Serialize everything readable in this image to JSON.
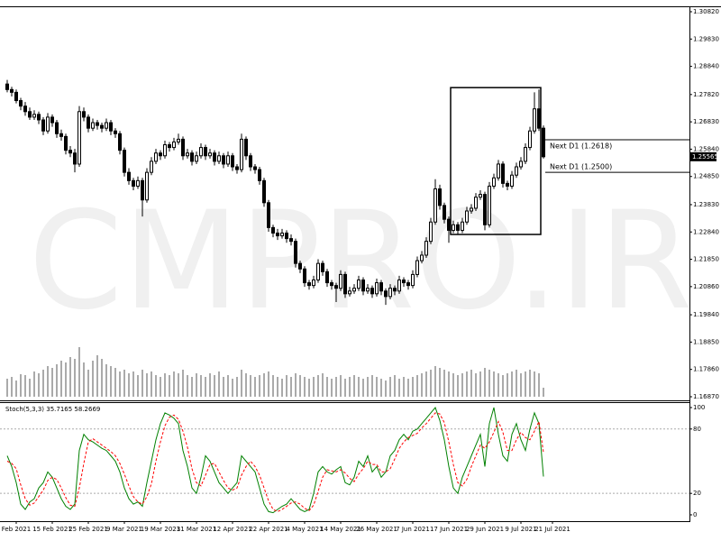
{
  "chart_data": {
    "type": "candlestick",
    "watermark": "CMPRO.IR",
    "ylim": [
      1.16772,
      1.30983
    ],
    "xlim": [
      -1.6,
      151.4
    ],
    "yticks": [
      {
        "value": 1.3082,
        "label": "1.30820"
      },
      {
        "value": 1.2983,
        "label": "1.29830"
      },
      {
        "value": 1.2884,
        "label": "1.28840"
      },
      {
        "value": 1.2782,
        "label": "1.27820"
      },
      {
        "value": 1.2683,
        "label": "1.26830"
      },
      {
        "value": 1.2584,
        "label": "1.25840"
      },
      {
        "value": 1.2485,
        "label": "1.24850"
      },
      {
        "value": 1.2383,
        "label": "1.23830"
      },
      {
        "value": 1.2284,
        "label": "1.22840"
      },
      {
        "value": 1.2185,
        "label": "1.21850"
      },
      {
        "value": 1.2086,
        "label": "1.20860"
      },
      {
        "value": 1.1984,
        "label": "1.19840"
      },
      {
        "value": 1.1885,
        "label": "1.18850"
      },
      {
        "value": 1.1786,
        "label": "1.17860"
      },
      {
        "value": 1.1687,
        "label": "1.16870"
      }
    ],
    "xticks": [
      {
        "value": 2,
        "label": "Feb 2021"
      },
      {
        "value": 10,
        "label": "15 Feb 2021"
      },
      {
        "value": 18,
        "label": "25 Feb 2021"
      },
      {
        "value": 26,
        "label": "9 Mar 2021"
      },
      {
        "value": 34,
        "label": "19 Mar 2021"
      },
      {
        "value": 42,
        "label": "31 Mar 2021"
      },
      {
        "value": 50,
        "label": "12 Apr 2021"
      },
      {
        "value": 58,
        "label": "22 Apr 2021"
      },
      {
        "value": 66,
        "label": "4 May 2021"
      },
      {
        "value": 74,
        "label": "14 May 2021"
      },
      {
        "value": 82,
        "label": "26 May 2021"
      },
      {
        "value": 90,
        "label": "7 Jun 2021"
      },
      {
        "value": 98,
        "label": "17 Jun 2021"
      },
      {
        "value": 106,
        "label": "29 Jun 2021"
      },
      {
        "value": 114,
        "label": "9 Jul 2021"
      },
      {
        "value": 121,
        "label": "21 Jul 2021"
      }
    ],
    "last_price": {
      "value": 1.25565,
      "label": "1.25565"
    },
    "levels": [
      {
        "value": 1.2618,
        "label": "Next D1 (1.2618)"
      },
      {
        "value": 1.25,
        "label": "Next D1 (1.2500)"
      }
    ],
    "box": {
      "x": [
        98.4,
        118.4
      ],
      "y": [
        1.2275,
        1.2807
      ]
    },
    "ohlc": [
      [
        1.282,
        1.2835,
        1.279,
        1.28
      ],
      [
        1.28,
        1.281,
        1.2775,
        1.279
      ],
      [
        1.279,
        1.28,
        1.275,
        1.276
      ],
      [
        1.276,
        1.277,
        1.2725,
        1.274
      ],
      [
        1.274,
        1.2755,
        1.2705,
        1.272
      ],
      [
        1.272,
        1.2735,
        1.269,
        1.27
      ],
      [
        1.27,
        1.2725,
        1.269,
        1.271
      ],
      [
        1.271,
        1.272,
        1.2675,
        1.269
      ],
      [
        1.269,
        1.27,
        1.2635,
        1.265
      ],
      [
        1.265,
        1.2715,
        1.264,
        1.27
      ],
      [
        1.27,
        1.271,
        1.2665,
        1.268
      ],
      [
        1.268,
        1.269,
        1.2625,
        1.264
      ],
      [
        1.264,
        1.2655,
        1.2615,
        1.263
      ],
      [
        1.263,
        1.264,
        1.2565,
        1.258
      ],
      [
        1.258,
        1.2595,
        1.2555,
        1.257
      ],
      [
        1.257,
        1.2585,
        1.25,
        1.253
      ],
      [
        1.253,
        1.274,
        1.252,
        1.272
      ],
      [
        1.272,
        1.2735,
        1.2685,
        1.27
      ],
      [
        1.27,
        1.271,
        1.2645,
        1.266
      ],
      [
        1.266,
        1.2695,
        1.265,
        1.268
      ],
      [
        1.268,
        1.269,
        1.2655,
        1.267
      ],
      [
        1.267,
        1.268,
        1.2645,
        1.266
      ],
      [
        1.266,
        1.2695,
        1.265,
        1.268
      ],
      [
        1.268,
        1.269,
        1.2635,
        1.265
      ],
      [
        1.265,
        1.266,
        1.2625,
        1.264
      ],
      [
        1.264,
        1.265,
        1.2565,
        1.258
      ],
      [
        1.258,
        1.259,
        1.2485,
        1.25
      ],
      [
        1.25,
        1.2515,
        1.2455,
        1.247
      ],
      [
        1.247,
        1.248,
        1.2435,
        1.245
      ],
      [
        1.245,
        1.2485,
        1.244,
        1.247
      ],
      [
        1.247,
        1.248,
        1.234,
        1.24
      ],
      [
        1.24,
        1.2515,
        1.239,
        1.25
      ],
      [
        1.25,
        1.2555,
        1.249,
        1.254
      ],
      [
        1.254,
        1.2585,
        1.253,
        1.257
      ],
      [
        1.257,
        1.258,
        1.2545,
        1.256
      ],
      [
        1.256,
        1.2615,
        1.255,
        1.26
      ],
      [
        1.26,
        1.261,
        1.2575,
        1.259
      ],
      [
        1.259,
        1.2625,
        1.258,
        1.261
      ],
      [
        1.261,
        1.264,
        1.26,
        1.262
      ],
      [
        1.262,
        1.263,
        1.2545,
        1.256
      ],
      [
        1.256,
        1.2585,
        1.255,
        1.257
      ],
      [
        1.257,
        1.258,
        1.2525,
        1.254
      ],
      [
        1.254,
        1.2575,
        1.253,
        1.256
      ],
      [
        1.256,
        1.2605,
        1.255,
        1.259
      ],
      [
        1.259,
        1.26,
        1.2545,
        1.256
      ],
      [
        1.256,
        1.2585,
        1.255,
        1.257
      ],
      [
        1.257,
        1.258,
        1.2525,
        1.254
      ],
      [
        1.254,
        1.2575,
        1.253,
        1.256
      ],
      [
        1.256,
        1.257,
        1.2515,
        1.253
      ],
      [
        1.253,
        1.2575,
        1.252,
        1.256
      ],
      [
        1.256,
        1.257,
        1.2505,
        1.252
      ],
      [
        1.252,
        1.253,
        1.2495,
        1.251
      ],
      [
        1.251,
        1.264,
        1.25,
        1.262
      ],
      [
        1.262,
        1.263,
        1.2545,
        1.256
      ],
      [
        1.256,
        1.257,
        1.2505,
        1.252
      ],
      [
        1.252,
        1.253,
        1.2495,
        1.251
      ],
      [
        1.251,
        1.252,
        1.2455,
        1.247
      ],
      [
        1.247,
        1.248,
        1.2375,
        1.239
      ],
      [
        1.239,
        1.24,
        1.2285,
        1.23
      ],
      [
        1.23,
        1.231,
        1.2265,
        1.228
      ],
      [
        1.228,
        1.2295,
        1.2255,
        1.227
      ],
      [
        1.227,
        1.2295,
        1.226,
        1.228
      ],
      [
        1.228,
        1.229,
        1.2245,
        1.226
      ],
      [
        1.226,
        1.2275,
        1.2235,
        1.225
      ],
      [
        1.225,
        1.226,
        1.2155,
        1.217
      ],
      [
        1.217,
        1.218,
        1.2135,
        1.215
      ],
      [
        1.215,
        1.216,
        1.2085,
        1.21
      ],
      [
        1.21,
        1.211,
        1.2075,
        1.209
      ],
      [
        1.209,
        1.2125,
        1.208,
        1.211
      ],
      [
        1.211,
        1.2185,
        1.21,
        1.217
      ],
      [
        1.217,
        1.218,
        1.2125,
        1.214
      ],
      [
        1.214,
        1.215,
        1.2085,
        1.21
      ],
      [
        1.21,
        1.211,
        1.2075,
        1.209
      ],
      [
        1.209,
        1.21,
        1.203,
        1.208
      ],
      [
        1.208,
        1.2145,
        1.207,
        1.213
      ],
      [
        1.213,
        1.214,
        1.2045,
        1.206
      ],
      [
        1.206,
        1.2085,
        1.205,
        1.207
      ],
      [
        1.207,
        1.2095,
        1.206,
        1.208
      ],
      [
        1.208,
        1.2125,
        1.207,
        1.211
      ],
      [
        1.211,
        1.212,
        1.2055,
        1.207
      ],
      [
        1.207,
        1.2095,
        1.206,
        1.208
      ],
      [
        1.208,
        1.209,
        1.2045,
        1.206
      ],
      [
        1.206,
        1.2115,
        1.205,
        1.21
      ],
      [
        1.21,
        1.211,
        1.2055,
        1.207
      ],
      [
        1.207,
        1.208,
        1.202,
        1.205
      ],
      [
        1.205,
        1.2095,
        1.204,
        1.208
      ],
      [
        1.208,
        1.209,
        1.2055,
        1.207
      ],
      [
        1.207,
        1.2125,
        1.206,
        1.211
      ],
      [
        1.211,
        1.212,
        1.2085,
        1.21
      ],
      [
        1.21,
        1.211,
        1.2075,
        1.209
      ],
      [
        1.209,
        1.2145,
        1.208,
        1.213
      ],
      [
        1.213,
        1.2195,
        1.212,
        1.218
      ],
      [
        1.218,
        1.2215,
        1.217,
        1.22
      ],
      [
        1.22,
        1.2265,
        1.219,
        1.225
      ],
      [
        1.225,
        1.2335,
        1.224,
        1.232
      ],
      [
        1.232,
        1.2475,
        1.231,
        1.244
      ],
      [
        1.244,
        1.2455,
        1.2365,
        1.238
      ],
      [
        1.238,
        1.239,
        1.2315,
        1.233
      ],
      [
        1.233,
        1.234,
        1.2245,
        1.229
      ],
      [
        1.229,
        1.2325,
        1.228,
        1.231
      ],
      [
        1.231,
        1.232,
        1.2275,
        1.229
      ],
      [
        1.229,
        1.2335,
        1.228,
        1.232
      ],
      [
        1.232,
        1.2375,
        1.231,
        1.236
      ],
      [
        1.236,
        1.2385,
        1.235,
        1.237
      ],
      [
        1.237,
        1.2425,
        1.236,
        1.241
      ],
      [
        1.241,
        1.2435,
        1.24,
        1.242
      ],
      [
        1.242,
        1.243,
        1.229,
        1.231
      ],
      [
        1.231,
        1.2465,
        1.23,
        1.245
      ],
      [
        1.245,
        1.2495,
        1.244,
        1.248
      ],
      [
        1.248,
        1.2545,
        1.247,
        1.253
      ],
      [
        1.253,
        1.254,
        1.2445,
        1.246
      ],
      [
        1.246,
        1.247,
        1.2435,
        1.245
      ],
      [
        1.245,
        1.2505,
        1.244,
        1.249
      ],
      [
        1.249,
        1.2535,
        1.248,
        1.252
      ],
      [
        1.252,
        1.2555,
        1.251,
        1.254
      ],
      [
        1.254,
        1.2605,
        1.253,
        1.259
      ],
      [
        1.259,
        1.2665,
        1.258,
        1.265
      ],
      [
        1.265,
        1.279,
        1.264,
        1.273
      ],
      [
        1.273,
        1.28,
        1.265,
        1.266
      ],
      [
        1.266,
        1.267,
        1.255,
        1.25565
      ]
    ],
    "volume": [
      20,
      22,
      18,
      25,
      24,
      20,
      28,
      26,
      30,
      34,
      32,
      36,
      40,
      38,
      44,
      42,
      55,
      38,
      30,
      40,
      46,
      42,
      36,
      34,
      32,
      28,
      30,
      26,
      28,
      24,
      30,
      26,
      28,
      24,
      22,
      26,
      24,
      28,
      26,
      30,
      24,
      22,
      26,
      24,
      22,
      26,
      24,
      28,
      22,
      24,
      20,
      22,
      30,
      26,
      24,
      22,
      24,
      26,
      28,
      24,
      22,
      20,
      24,
      22,
      26,
      24,
      22,
      20,
      22,
      24,
      26,
      22,
      20,
      22,
      24,
      20,
      22,
      24,
      22,
      20,
      22,
      24,
      22,
      20,
      18,
      22,
      24,
      20,
      22,
      20,
      22,
      24,
      26,
      28,
      30,
      34,
      32,
      30,
      28,
      26,
      24,
      26,
      28,
      30,
      26,
      28,
      32,
      30,
      28,
      26,
      24,
      26,
      28,
      30,
      26,
      28,
      30,
      28,
      26,
      10
    ],
    "indicator": {
      "type": "line",
      "title": "Stoch(5,3,3) 35.7165 58.2669",
      "ylim": [
        -5.9,
        104.2
      ],
      "yticks": [
        100,
        80,
        20,
        0
      ],
      "levels": [
        80,
        20
      ],
      "series": [
        {
          "name": "Main",
          "color": "#008000",
          "dash": false,
          "values": [
            55,
            45,
            30,
            10,
            5,
            12,
            15,
            25,
            30,
            40,
            35,
            25,
            15,
            8,
            5,
            10,
            60,
            75,
            70,
            68,
            65,
            62,
            60,
            55,
            50,
            40,
            25,
            15,
            10,
            12,
            8,
            30,
            50,
            70,
            85,
            95,
            93,
            90,
            85,
            60,
            45,
            25,
            20,
            35,
            55,
            50,
            40,
            30,
            25,
            20,
            25,
            30,
            55,
            50,
            45,
            40,
            25,
            10,
            3,
            2,
            5,
            8,
            10,
            15,
            10,
            5,
            3,
            5,
            20,
            40,
            45,
            40,
            38,
            42,
            45,
            30,
            28,
            35,
            50,
            45,
            55,
            40,
            45,
            35,
            40,
            55,
            60,
            70,
            75,
            70,
            78,
            80,
            85,
            90,
            95,
            100,
            88,
            70,
            45,
            25,
            20,
            35,
            45,
            55,
            65,
            75,
            45,
            85,
            100,
            75,
            55,
            50,
            75,
            85,
            70,
            60,
            80,
            95,
            85,
            35.7165
          ]
        },
        {
          "name": "Signal",
          "color": "#ff0000",
          "dash": true,
          "values": [
            50,
            48,
            43,
            28,
            15,
            9,
            11,
            17,
            23,
            32,
            35,
            33,
            25,
            16,
            9,
            8,
            25,
            48,
            68,
            71,
            68,
            65,
            62,
            59,
            55,
            48,
            38,
            27,
            17,
            12,
            10,
            17,
            29,
            50,
            68,
            83,
            91,
            93,
            89,
            78,
            63,
            43,
            30,
            27,
            37,
            47,
            48,
            40,
            32,
            25,
            23,
            25,
            37,
            45,
            50,
            45,
            37,
            25,
            13,
            5,
            3,
            5,
            8,
            11,
            12,
            10,
            6,
            4,
            9,
            22,
            35,
            42,
            41,
            40,
            42,
            39,
            34,
            31,
            38,
            43,
            50,
            47,
            47,
            40,
            40,
            43,
            52,
            62,
            68,
            72,
            74,
            76,
            81,
            85,
            90,
            95,
            94,
            86,
            68,
            47,
            30,
            27,
            33,
            45,
            55,
            65,
            62,
            68,
            77,
            87,
            77,
            60,
            60,
            70,
            77,
            72,
            70,
            78,
            87,
            58.2669
          ]
        }
      ]
    }
  }
}
